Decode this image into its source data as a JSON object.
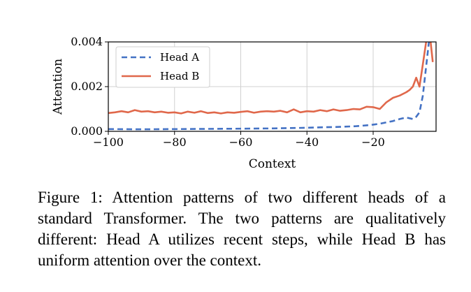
{
  "caption": "Figure 1: Attention patterns of two different heads of a standard Transformer. The two patterns are qualitatively different: Head A utilizes recent steps, while Head B has uniform attention over the context.",
  "chart_data": {
    "type": "line",
    "xlabel": "Context",
    "ylabel": "Attention",
    "xlim": [
      -100,
      -1
    ],
    "ylim": [
      0.0,
      0.004
    ],
    "x_ticks": [
      -100,
      -80,
      -60,
      -40,
      -20
    ],
    "x_tick_labels": [
      "−100",
      "−80",
      "−60",
      "−40",
      "−20"
    ],
    "y_ticks": [
      0.0,
      0.002,
      0.004
    ],
    "y_tick_labels": [
      "0.000",
      "0.002",
      "0.004"
    ],
    "grid": true,
    "legend_position": "top-left",
    "series": [
      {
        "name": "Head A",
        "color": "#4472c4",
        "style": "dashed",
        "x": [
          -100,
          -90,
          -80,
          -70,
          -60,
          -50,
          -40,
          -35,
          -30,
          -25,
          -22,
          -20,
          -18,
          -16,
          -14,
          -12,
          -10,
          -8,
          -7,
          -6,
          -5,
          -4,
          -3,
          -2
        ],
        "y": [
          0.0001,
          9e-05,
          0.0001,
          0.00011,
          0.00012,
          0.00013,
          0.00016,
          0.00018,
          0.0002,
          0.00023,
          0.00027,
          0.0003,
          0.00034,
          0.0004,
          0.00046,
          0.00055,
          0.00062,
          0.00055,
          0.00065,
          0.00085,
          0.0016,
          0.0029,
          0.0042,
          0.0048
        ]
      },
      {
        "name": "Head B",
        "color": "#e0684b",
        "style": "solid",
        "x": [
          -100,
          -98,
          -96,
          -94,
          -92,
          -90,
          -88,
          -86,
          -84,
          -82,
          -80,
          -78,
          -76,
          -74,
          -72,
          -70,
          -68,
          -66,
          -64,
          -62,
          -60,
          -58,
          -56,
          -54,
          -52,
          -50,
          -48,
          -46,
          -44,
          -42,
          -40,
          -38,
          -36,
          -34,
          -32,
          -30,
          -28,
          -26,
          -24,
          -22,
          -20,
          -18,
          -16,
          -14,
          -12,
          -10,
          -9,
          -8,
          -7,
          -6,
          -5,
          -4,
          -3,
          -2
        ],
        "y": [
          0.00082,
          0.00085,
          0.0009,
          0.00085,
          0.00095,
          0.00088,
          0.0009,
          0.00085,
          0.00088,
          0.00083,
          0.00085,
          0.0008,
          0.00088,
          0.00083,
          0.0009,
          0.00082,
          0.00085,
          0.0008,
          0.00085,
          0.00083,
          0.00087,
          0.0009,
          0.00083,
          0.00088,
          0.0009,
          0.00088,
          0.00092,
          0.00085,
          0.00098,
          0.00085,
          0.0009,
          0.00088,
          0.00095,
          0.0009,
          0.00098,
          0.00092,
          0.00095,
          0.001,
          0.00098,
          0.0011,
          0.00108,
          0.001,
          0.0013,
          0.0015,
          0.0016,
          0.00175,
          0.00185,
          0.002,
          0.0024,
          0.002,
          0.003,
          0.004,
          0.0045,
          0.0031
        ]
      }
    ]
  }
}
